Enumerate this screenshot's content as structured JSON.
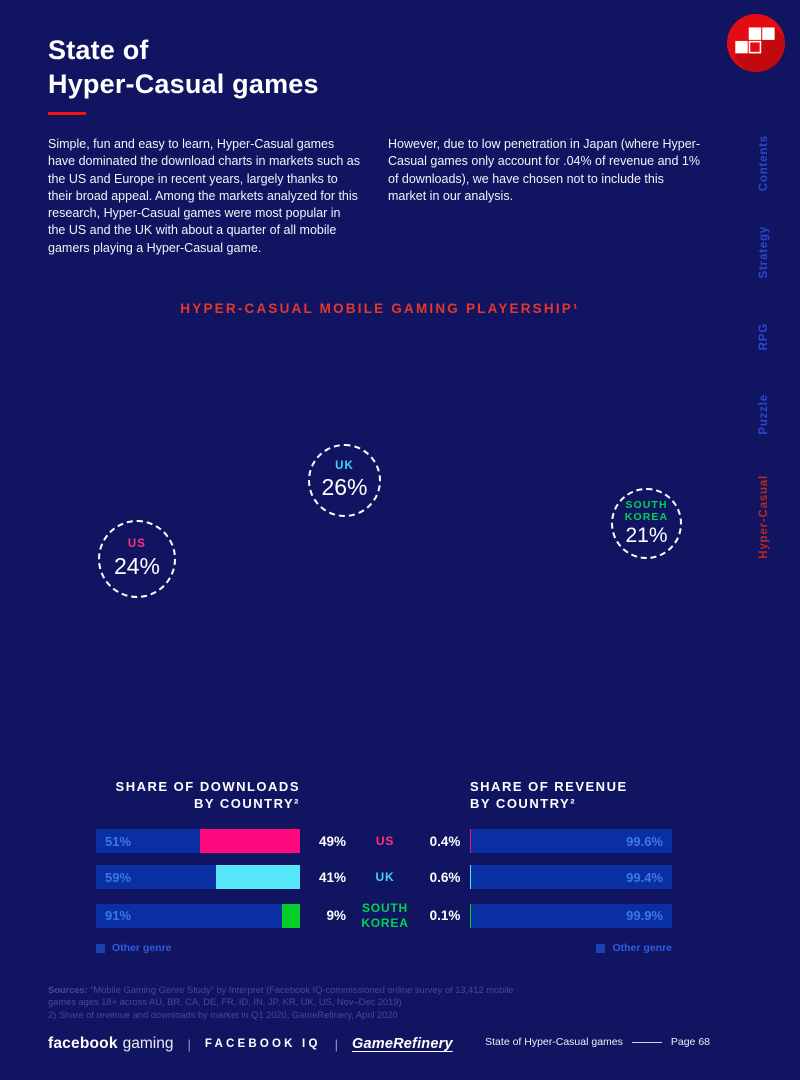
{
  "header": {
    "title_line1": "State of",
    "title_line2": "Hyper-Casual games"
  },
  "intro": {
    "left": "Simple, fun and easy to learn, Hyper-Casual games have dominated the download charts in markets such as the US and Europe in recent years, largely thanks to their broad appeal. Among the markets analyzed for this research, Hyper-Casual games were most popular in the US and the UK with about a quarter of all mobile gamers playing a Hyper-Casual game.",
    "right": "However, due to low penetration in Japan (where Hyper-Casual games only account for .04% of revenue and 1% of downloads), we have chosen not to include this market in our analysis."
  },
  "sidebar": {
    "tabs": [
      {
        "label": "Contents",
        "color": "#2948ce"
      },
      {
        "label": "Strategy",
        "color": "#2948ce"
      },
      {
        "label": "RPG",
        "color": "#2948ce"
      },
      {
        "label": "Puzzle",
        "color": "#2948ce"
      },
      {
        "label": "Hyper-Casual",
        "color": "#bf261a"
      }
    ]
  },
  "playership": {
    "heading": "HYPER-CASUAL MOBILE GAMING PLAYERSHIP¹",
    "circles": [
      {
        "label": "US",
        "value": "24%",
        "color": "#ff2e7a"
      },
      {
        "label": "UK",
        "value": "26%",
        "color": "#3cd6f4"
      },
      {
        "label": "SOUTH KOREA",
        "value": "21%",
        "color": "#00d351"
      }
    ]
  },
  "charts": {
    "downloads_heading": [
      "SHARE OF DOWNLOADS",
      "BY COUNTRY²"
    ],
    "revenue_heading": [
      "SHARE OF REVENUE",
      "BY COUNTRY²"
    ],
    "legend_label": "Other genre",
    "rows": [
      {
        "country": "US",
        "label_color": "#ff2e7a",
        "bar_color": "#ff0a7e",
        "dl_other_label": "51%",
        "dl_hyper_label": "49%",
        "dl_other": 51,
        "dl_hyper": 49,
        "rev_hyper_label": "0.4%",
        "rev_other_label": "99.6%",
        "rev_hyper": 0.4,
        "rev_other": 99.6
      },
      {
        "country": "UK",
        "label_color": "#3cd6f4",
        "bar_color": "#55e6f9",
        "dl_other_label": "59%",
        "dl_hyper_label": "41%",
        "dl_other": 59,
        "dl_hyper": 41,
        "rev_hyper_label": "0.6%",
        "rev_other_label": "99.4%",
        "rev_hyper": 0.6,
        "rev_other": 99.4
      },
      {
        "country": "SOUTH KOREA",
        "label_color": "#00d351",
        "bar_color": "#05cd2a",
        "dl_other_label": "91%",
        "dl_hyper_label": "9%",
        "dl_other": 91,
        "dl_hyper": 9,
        "rev_hyper_label": "0.1%",
        "rev_other_label": "99.9%",
        "rev_hyper": 0.1,
        "rev_other": 99.9
      }
    ]
  },
  "chart_data": [
    {
      "type": "bar",
      "title": "SHARE OF DOWNLOADS BY COUNTRY²",
      "orientation": "horizontal-stacked",
      "unit": "%",
      "categories": [
        "US",
        "UK",
        "SOUTH KOREA"
      ],
      "series": [
        {
          "name": "Other genre",
          "values": [
            51,
            59,
            91
          ],
          "color": "#0a2fa3"
        },
        {
          "name": "Hyper-Casual",
          "values": [
            49,
            41,
            9
          ],
          "colors": [
            "#ff0a7e",
            "#55e6f9",
            "#05cd2a"
          ]
        }
      ],
      "xlim": [
        0,
        100
      ],
      "legend_position": "bottom-left"
    },
    {
      "type": "bar",
      "title": "SHARE OF REVENUE BY COUNTRY²",
      "orientation": "horizontal-stacked",
      "unit": "%",
      "categories": [
        "US",
        "UK",
        "SOUTH KOREA"
      ],
      "series": [
        {
          "name": "Hyper-Casual",
          "values": [
            0.4,
            0.6,
            0.1
          ],
          "colors": [
            "#ff0a7e",
            "#55e6f9",
            "#05cd2a"
          ]
        },
        {
          "name": "Other genre",
          "values": [
            99.6,
            99.4,
            99.9
          ],
          "color": "#0a2fa3"
        }
      ],
      "xlim": [
        0,
        100
      ],
      "legend_position": "bottom-right"
    },
    {
      "type": "bar",
      "title": "HYPER-CASUAL MOBILE GAMING PLAYERSHIP¹",
      "categories": [
        "US",
        "UK",
        "SOUTH KOREA"
      ],
      "values": [
        24,
        26,
        21
      ],
      "unit": "%"
    }
  ],
  "sources": {
    "label": "Sources:",
    "line1_rest": "“Mobile Gaming Genre Study” by Interpret (Facebook IQ-commissioned online survey of 13,412 mobile",
    "line2": "games ages 18+ across AU, BR, CA, DE, FR, ID, IN, JP, KR, UK, US, Nov–Dec 2019)",
    "line3": "2) Share of revenue and downloads by market in Q1 2020, GameRefinery, April 2020"
  },
  "footer": {
    "brand_fb": "facebook",
    "brand_gaming": "gaming",
    "divider": "|",
    "brand_iq": "FACEBOOK IQ",
    "brand_gr": "GameRefinery",
    "page_label": "State of Hyper-Casual games",
    "page_number": "Page 68"
  },
  "colors": {
    "background": "#111561",
    "bar_blue": "#0a2fa3",
    "bar_text_blue": "#3a77e8",
    "accent_red": "#e5382b",
    "underline_red": "#f2150d",
    "logo_red": "#e40b12"
  }
}
